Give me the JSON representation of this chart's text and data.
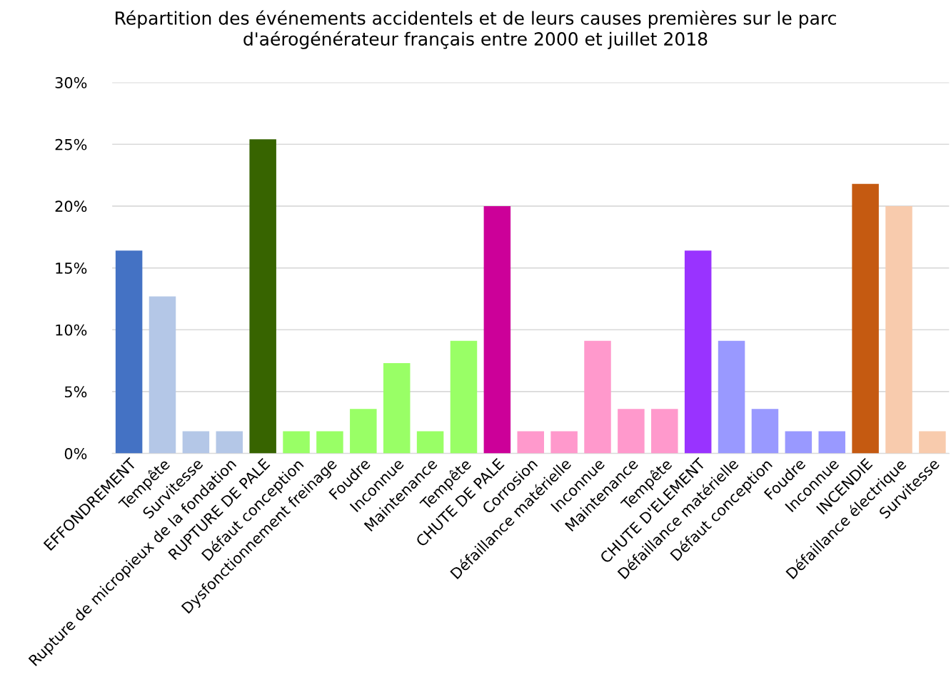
{
  "chart_data": {
    "type": "bar",
    "title": "Répartition des événements accidentels et de leurs causes premières sur le parc\nd'aérogénérateur français entre 2000 et juillet 2018",
    "categories": [
      "EFFONDREMENT",
      "Tempête",
      "Survitesse",
      "Rupture de micropieux de la fondation",
      "RUPTURE DE PALE",
      "Défaut conception",
      "Dysfonctionnement freinage",
      "Foudre",
      "Inconnue",
      "Maintenance",
      "Tempête",
      "CHUTE DE PALE",
      "Corrosion",
      "Défaillance matérielle",
      "Inconnue",
      "Maintenance",
      "Tempête",
      "CHUTE D'ELEMENT",
      "Défaillance matérielle",
      "Défaut conception",
      "Foudre",
      "Inconnue",
      "INCENDIE",
      "Défaillance électrique",
      "Survitesse"
    ],
    "values": [
      16.4,
      12.7,
      1.8,
      1.8,
      25.4,
      1.8,
      1.8,
      3.6,
      7.3,
      1.8,
      9.1,
      20.0,
      1.8,
      1.8,
      9.1,
      3.6,
      3.6,
      16.4,
      9.1,
      3.6,
      1.8,
      1.8,
      21.8,
      20.0,
      1.8
    ],
    "colors": [
      "#4472c4",
      "#b4c7e7",
      "#b4c7e7",
      "#b4c7e7",
      "#376400",
      "#99ff66",
      "#99ff66",
      "#99ff66",
      "#99ff66",
      "#99ff66",
      "#99ff66",
      "#cc0099",
      "#ff99cc",
      "#ff99cc",
      "#ff99cc",
      "#ff99cc",
      "#ff99cc",
      "#9933ff",
      "#9999ff",
      "#9999ff",
      "#9999ff",
      "#9999ff",
      "#c55a11",
      "#f8cbad",
      "#f8cbad"
    ],
    "ylim": [
      0,
      30
    ],
    "yticks": [
      {
        "value": 0,
        "label": "0%"
      },
      {
        "value": 5,
        "label": "5%"
      },
      {
        "value": 10,
        "label": "10%"
      },
      {
        "value": 15,
        "label": "15%"
      },
      {
        "value": 20,
        "label": "20%"
      },
      {
        "value": 25,
        "label": "25%"
      },
      {
        "value": 30,
        "label": "30%"
      }
    ],
    "grid": "y",
    "legend": false
  }
}
